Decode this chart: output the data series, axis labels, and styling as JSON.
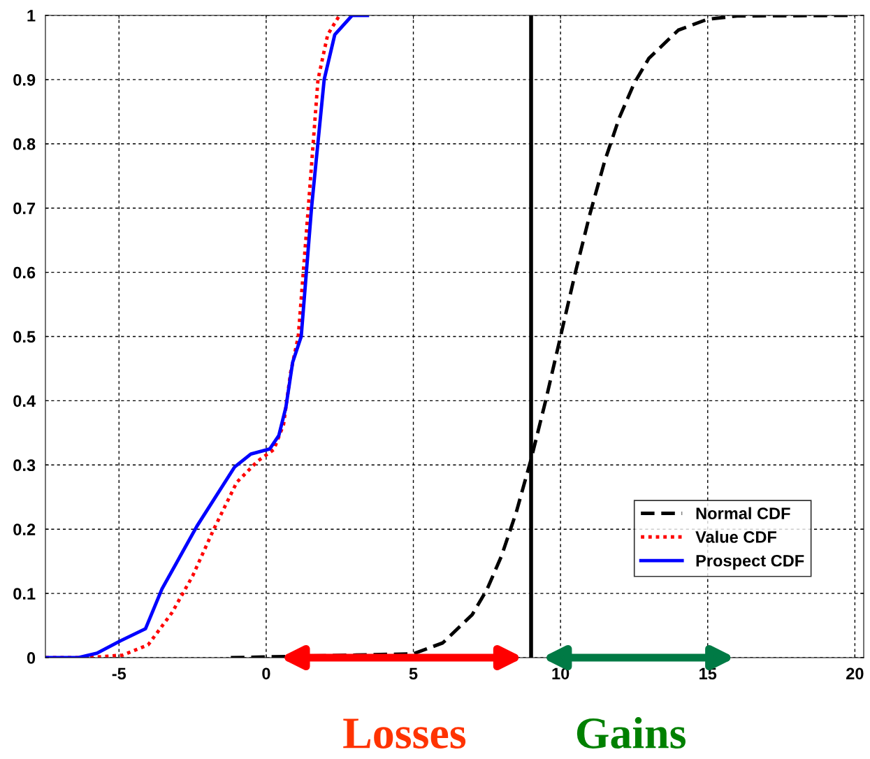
{
  "chart_data": {
    "type": "line",
    "xlim": [
      -7.5,
      20.3
    ],
    "ylim": [
      0,
      1
    ],
    "xticks": [
      -5,
      0,
      5,
      10,
      15,
      20
    ],
    "yticks": [
      0,
      0.1,
      0.2,
      0.3,
      0.4,
      0.5,
      0.6,
      0.7,
      0.8,
      0.9,
      1
    ],
    "grid": true,
    "legend": "bottom right",
    "series": [
      {
        "name": "Normal CDF",
        "color": "#000000",
        "line_style": "dashed",
        "x": [
          -1.2,
          5,
          6,
          7,
          7.5,
          8,
          8.5,
          9,
          9.5,
          10,
          10.5,
          11,
          11.5,
          12,
          12.5,
          13,
          14,
          15,
          16,
          20
        ],
        "values": [
          0,
          0.006,
          0.023,
          0.067,
          0.106,
          0.159,
          0.227,
          0.309,
          0.401,
          0.5,
          0.599,
          0.691,
          0.773,
          0.841,
          0.894,
          0.933,
          0.977,
          0.994,
          0.999,
          1
        ]
      },
      {
        "name": "Value CDF",
        "color": "#ff0000",
        "line_style": "dotted",
        "x": [
          -7.5,
          -6.06,
          -4.87,
          -4.01,
          -3.2,
          -2.49,
          -1.78,
          -1.0,
          -0.29,
          0.26,
          0.59,
          0.83,
          1.09,
          1.43,
          1.76,
          2.09,
          2.49
        ],
        "values": [
          0,
          0,
          0.004,
          0.02,
          0.07,
          0.128,
          0.2,
          0.273,
          0.306,
          0.324,
          0.363,
          0.444,
          0.5,
          0.7,
          0.9,
          0.97,
          1
        ]
      },
      {
        "name": "Prospect CDF",
        "color": "#0000ff",
        "line_style": "solid",
        "x": [
          -7.5,
          -6.4,
          -5.75,
          -4.96,
          -4.1,
          -3.54,
          -2.35,
          -1.07,
          -0.52,
          0.12,
          0.43,
          0.67,
          0.9,
          1.19,
          1.54,
          1.97,
          2.33,
          2.92,
          3.44
        ],
        "values": [
          0,
          0,
          0.007,
          0.026,
          0.045,
          0.107,
          0.205,
          0.297,
          0.317,
          0.325,
          0.346,
          0.39,
          0.46,
          0.5,
          0.7,
          0.9,
          0.97,
          1,
          1
        ]
      }
    ],
    "ref_lines": [
      {
        "axis": "x",
        "value": 9,
        "color": "#000000"
      }
    ],
    "annotations": [
      "Losses",
      "Gains"
    ]
  }
}
